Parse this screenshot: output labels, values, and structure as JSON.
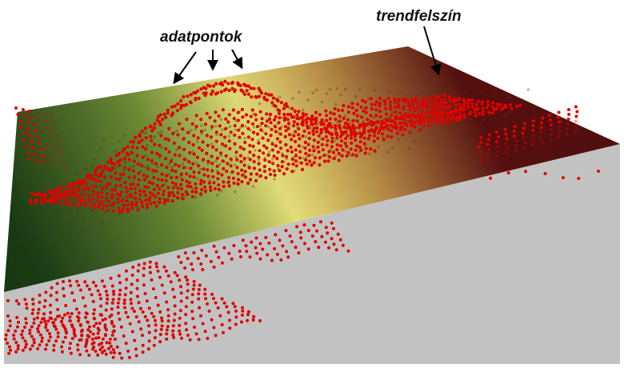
{
  "labels": {
    "data_points": "adatpontok",
    "trend_surface": "trendfelszín"
  },
  "colors": {
    "background": "#ffffff",
    "floor": "#c2c2c2",
    "surface_light": "#e8e27a",
    "surface_green": "#1f4f1a",
    "surface_brown": "#5a1010",
    "points": "#e00000",
    "arrows": "#000000"
  }
}
